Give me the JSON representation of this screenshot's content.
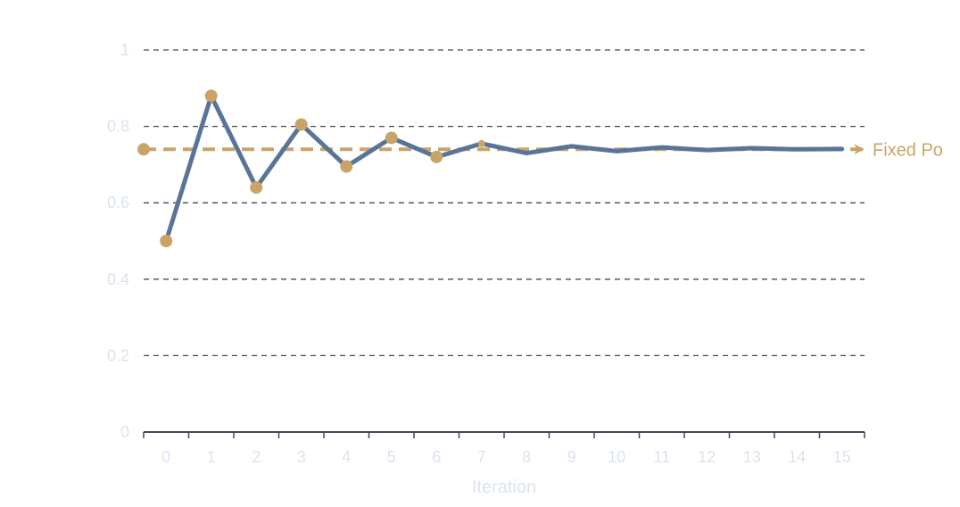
{
  "chart_data": {
    "type": "line",
    "title": "",
    "xlabel": "Iteration",
    "ylabel": "",
    "ylim": [
      0,
      1
    ],
    "yticks": [
      0,
      0.2,
      0.4,
      0.6,
      0.8,
      1
    ],
    "ytick_labels": [
      "0",
      "0.2",
      "0.4",
      "0.6",
      "0.8",
      "1"
    ],
    "xticks": [
      0,
      1,
      2,
      3,
      4,
      5,
      6,
      7,
      8,
      9,
      10,
      11,
      12,
      13,
      14,
      15
    ],
    "xtick_labels": [
      "0",
      "1",
      "2",
      "3",
      "4",
      "5",
      "6",
      "7",
      "8",
      "9",
      "10",
      "11",
      "12",
      "13",
      "14",
      "15"
    ],
    "grid": "horizontal dashed",
    "series": [
      {
        "x": [
          0,
          1,
          2,
          3,
          4,
          5,
          6,
          7,
          8,
          9,
          10,
          11,
          12,
          13,
          14,
          15
        ],
        "values": [
          0.5,
          0.88,
          0.64,
          0.805,
          0.695,
          0.77,
          0.72,
          0.755,
          0.73,
          0.748,
          0.735,
          0.745,
          0.738,
          0.743,
          0.74,
          0.741
        ],
        "color": "#5a7499",
        "marker_color": "#c9a466"
      }
    ],
    "reference_line": {
      "label": "Fixed Po",
      "value": 0.74,
      "color": "#c9a466",
      "style": "dashed with arrow"
    }
  }
}
